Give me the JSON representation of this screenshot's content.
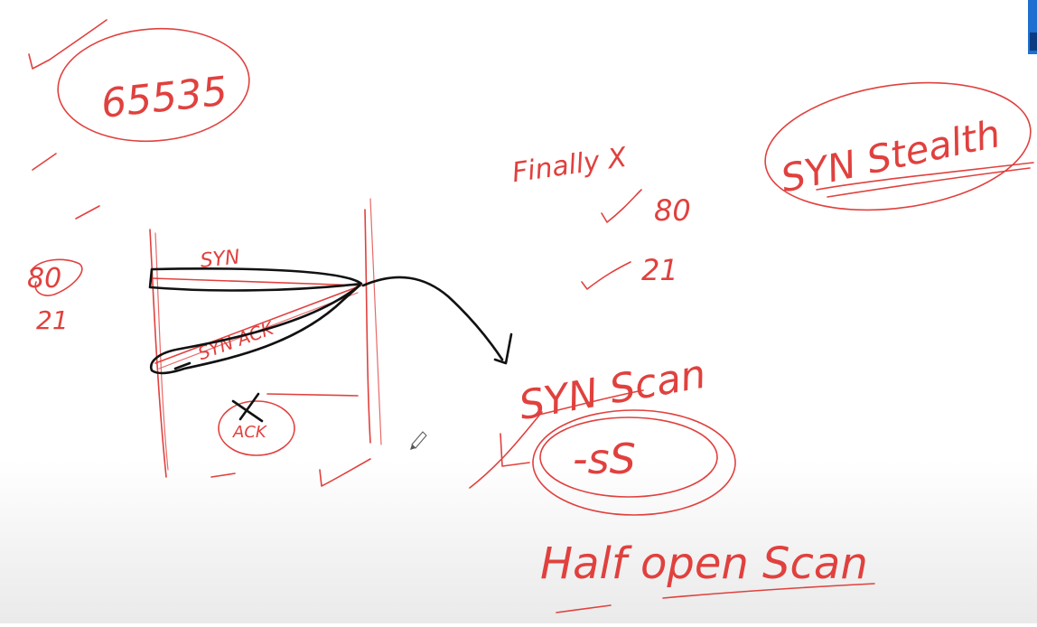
{
  "notes": {
    "port_number": "65535",
    "port_a": "80",
    "port_b": "21",
    "left_port_a": "80",
    "left_port_b": "21",
    "finally_label": "Finally X",
    "list_port_a": "80",
    "list_port_b": "21",
    "syn_stealth": "SYN Stealth",
    "syn_label": "SYN",
    "syn_ack_label": "SYN ACK",
    "ack_label": "ACK",
    "syn_scan": "SYN Scan",
    "flag": "-sS",
    "half_open": "Half open Scan"
  },
  "colors": {
    "ink_red": "#e0413e",
    "ink_black": "#111111",
    "logo_blue": "#1e6fd0"
  }
}
